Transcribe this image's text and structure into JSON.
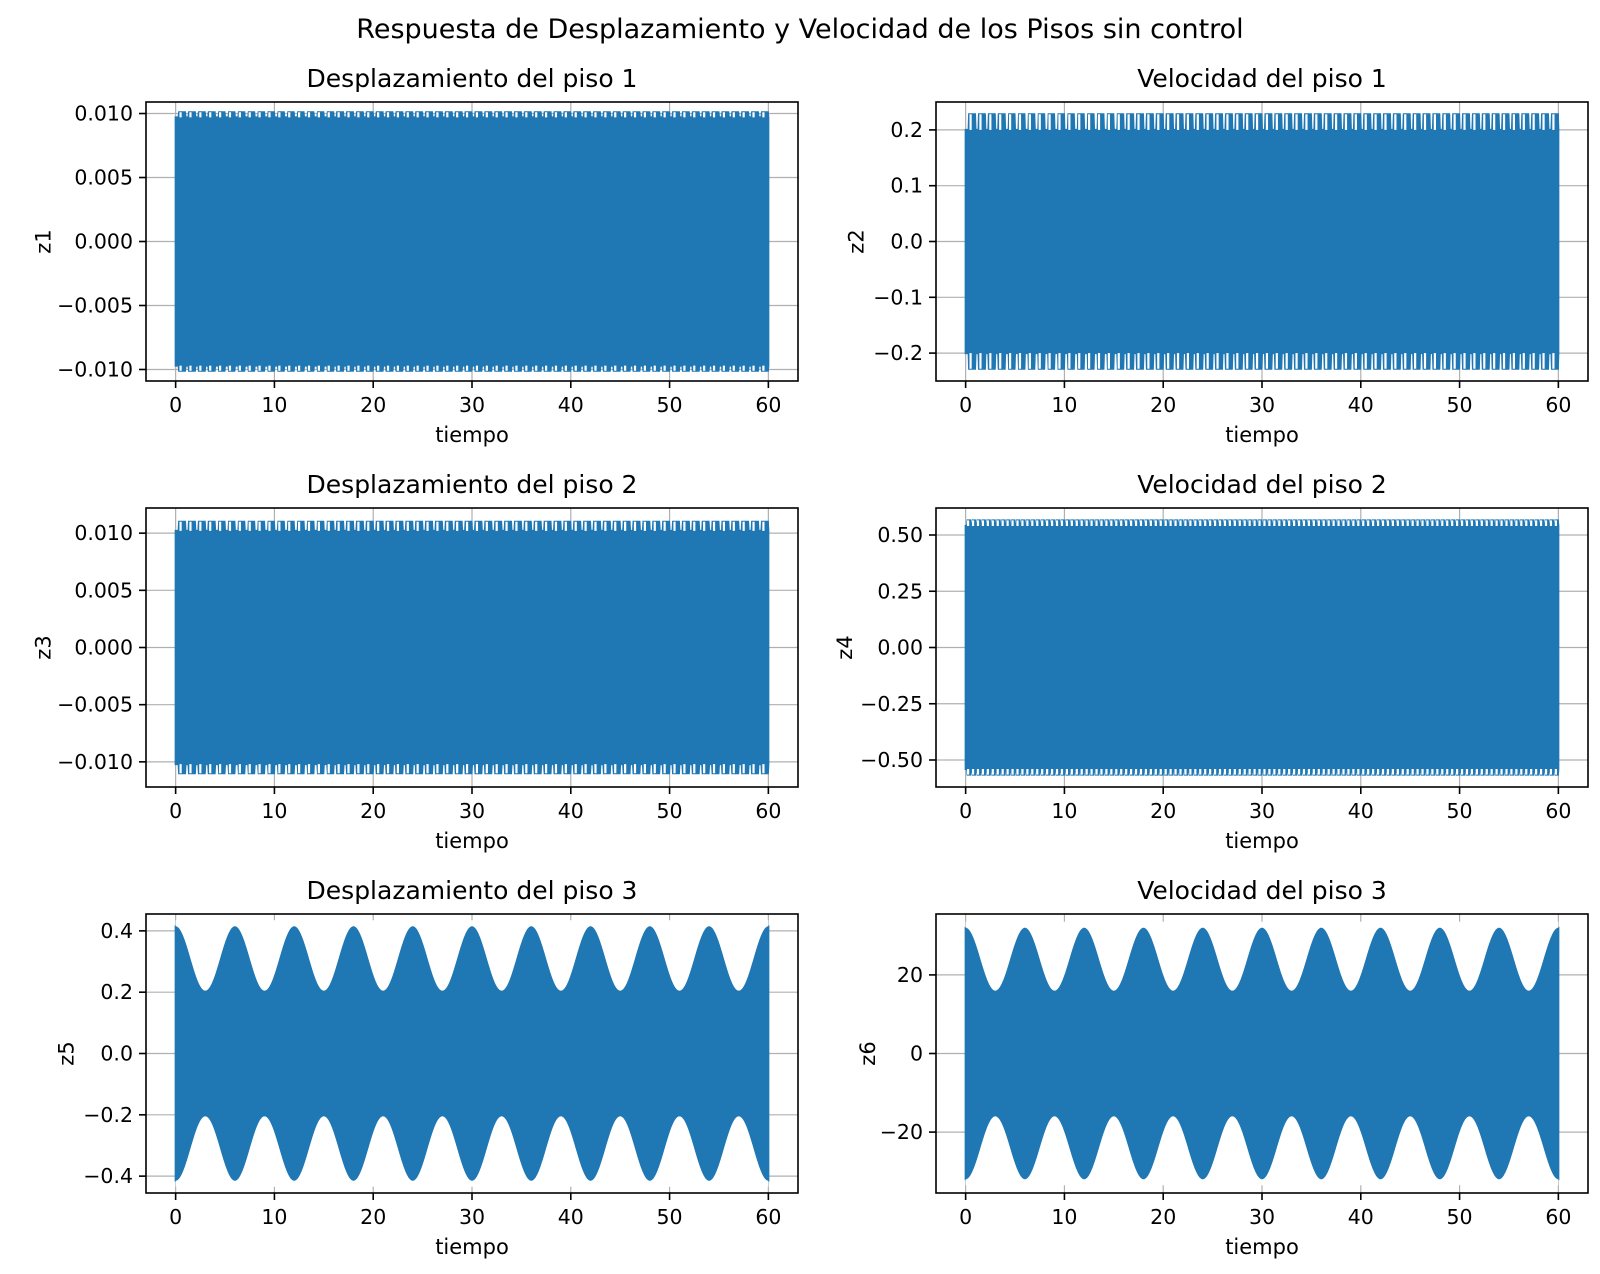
{
  "figure": {
    "suptitle": "Respuesta de Desplazamiento y Velocidad de los Pisos sin control",
    "series_color": "#1f77b4"
  },
  "chart_data": [
    {
      "type": "line",
      "title": "Desplazamiento del piso 1",
      "xlabel": "tiempo",
      "ylabel": "z1",
      "xlim": [
        -3,
        63
      ],
      "ylim": [
        -0.0109,
        0.0109
      ],
      "xticks": [
        0,
        10,
        20,
        30,
        40,
        50,
        60
      ],
      "xtick_labels": [
        "0",
        "10",
        "20",
        "30",
        "40",
        "50",
        "60"
      ],
      "yticks": [
        -0.01,
        -0.005,
        0.0,
        0.005,
        0.01
      ],
      "ytick_labels": [
        "−0.010",
        "−0.005",
        "0.000",
        "0.005",
        "0.010"
      ],
      "grid": true,
      "series": [
        {
          "envelope": {
            "t_start": 0,
            "t_end": 60,
            "peak": 0.0101,
            "ripple_low": 0.0097,
            "ripple_period": 1.0,
            "beat_base": 0.0,
            "beat_period": 0
          }
        }
      ]
    },
    {
      "type": "line",
      "title": "Velocidad del piso 1",
      "xlabel": "tiempo",
      "ylabel": "z2",
      "xlim": [
        -3,
        63
      ],
      "ylim": [
        -0.25,
        0.25
      ],
      "xticks": [
        0,
        10,
        20,
        30,
        40,
        50,
        60
      ],
      "xtick_labels": [
        "0",
        "10",
        "20",
        "30",
        "40",
        "50",
        "60"
      ],
      "yticks": [
        -0.2,
        -0.1,
        0.0,
        0.1,
        0.2
      ],
      "ytick_labels": [
        "−0.2",
        "−0.1",
        "0.0",
        "0.1",
        "0.2"
      ],
      "grid": true,
      "series": [
        {
          "envelope": {
            "t_start": 0,
            "t_end": 60,
            "peak": 0.228,
            "ripple_low": 0.2,
            "ripple_period": 1.0,
            "beat_base": 0.0,
            "beat_period": 0
          }
        }
      ]
    },
    {
      "type": "line",
      "title": "Desplazamiento del piso 2",
      "xlabel": "tiempo",
      "ylabel": "z3",
      "xlim": [
        -3,
        63
      ],
      "ylim": [
        -0.0122,
        0.0122
      ],
      "xticks": [
        0,
        10,
        20,
        30,
        40,
        50,
        60
      ],
      "xtick_labels": [
        "0",
        "10",
        "20",
        "30",
        "40",
        "50",
        "60"
      ],
      "yticks": [
        -0.01,
        -0.005,
        0.0,
        0.005,
        0.01
      ],
      "ytick_labels": [
        "−0.010",
        "−0.005",
        "0.000",
        "0.005",
        "0.010"
      ],
      "grid": true,
      "series": [
        {
          "envelope": {
            "t_start": 0,
            "t_end": 60,
            "peak": 0.011,
            "ripple_low": 0.0102,
            "ripple_period": 1.0,
            "beat_base": 0.0,
            "beat_period": 0
          }
        }
      ]
    },
    {
      "type": "line",
      "title": "Velocidad del piso 2",
      "xlabel": "tiempo",
      "ylabel": "z4",
      "xlim": [
        -3,
        63
      ],
      "ylim": [
        -0.62,
        0.62
      ],
      "xticks": [
        0,
        10,
        20,
        30,
        40,
        50,
        60
      ],
      "xtick_labels": [
        "0",
        "10",
        "20",
        "30",
        "40",
        "50",
        "60"
      ],
      "yticks": [
        -0.5,
        -0.25,
        0.0,
        0.25,
        0.5
      ],
      "ytick_labels": [
        "−0.50",
        "−0.25",
        "0.00",
        "0.25",
        "0.50"
      ],
      "grid": true,
      "series": [
        {
          "envelope": {
            "t_start": 0,
            "t_end": 60,
            "peak": 0.565,
            "ripple_low": 0.54,
            "ripple_period": 0.5,
            "beat_base": 0.0,
            "beat_period": 0
          }
        }
      ]
    },
    {
      "type": "line",
      "title": "Desplazamiento del piso 3",
      "xlabel": "tiempo",
      "ylabel": "z5",
      "xlim": [
        -3,
        63
      ],
      "ylim": [
        -0.455,
        0.455
      ],
      "xticks": [
        0,
        10,
        20,
        30,
        40,
        50,
        60
      ],
      "xtick_labels": [
        "0",
        "10",
        "20",
        "30",
        "40",
        "50",
        "60"
      ],
      "yticks": [
        -0.4,
        -0.2,
        0.0,
        0.2,
        0.4
      ],
      "ytick_labels": [
        "−0.4",
        "−0.2",
        "0.0",
        "0.2",
        "0.4"
      ],
      "grid": true,
      "series": [
        {
          "envelope": {
            "t_start": 0,
            "t_end": 60,
            "peak": 0.415,
            "ripple_low": 0.415,
            "ripple_period": 1.0,
            "beat_base": 0.205,
            "beat_period": 6.0
          }
        }
      ]
    },
    {
      "type": "line",
      "title": "Velocidad del piso 3",
      "xlabel": "tiempo",
      "ylabel": "z6",
      "xlim": [
        -3,
        63
      ],
      "ylim": [
        -35.5,
        35.5
      ],
      "xticks": [
        0,
        10,
        20,
        30,
        40,
        50,
        60
      ],
      "xtick_labels": [
        "0",
        "10",
        "20",
        "30",
        "40",
        "50",
        "60"
      ],
      "yticks": [
        -20,
        0,
        20
      ],
      "ytick_labels": [
        "−20",
        "0",
        "20"
      ],
      "grid": true,
      "series": [
        {
          "envelope": {
            "t_start": 0,
            "t_end": 60,
            "peak": 32.0,
            "ripple_low": 32.0,
            "ripple_period": 1.0,
            "beat_base": 16.0,
            "beat_period": 6.0
          }
        }
      ]
    }
  ]
}
